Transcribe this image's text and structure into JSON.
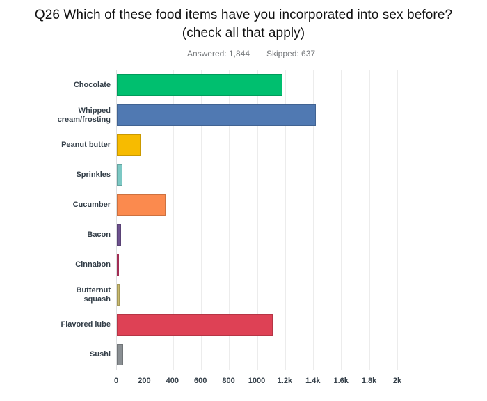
{
  "header": {
    "title": "Q26 Which of these food items have you incorporated into sex before?\n(check all that apply)",
    "answered": "Answered: 1,844",
    "skipped": "Skipped: 637"
  },
  "chart_data": {
    "type": "bar",
    "orientation": "horizontal",
    "title": "Q26 Which of these food items have you incorporated into sex before? (check all that apply)",
    "answered_count": "1,844",
    "skipped_count": "637",
    "categories": [
      "Chocolate",
      "Whipped\ncream/frosting",
      "Peanut butter",
      "Sprinkles",
      "Cucumber",
      "Bacon",
      "Cinnabon",
      "Butternut\nsquash",
      "Flavored lube",
      "Sushi"
    ],
    "values": [
      1180,
      1420,
      170,
      40,
      345,
      30,
      10,
      20,
      1110,
      45
    ],
    "colors": [
      "#00BF6F",
      "#5079B2",
      "#F7BB00",
      "#7CC8C4",
      "#FB8A4E",
      "#6D518F",
      "#C53767",
      "#C9BA6D",
      "#DE4155",
      "#8A8F93"
    ],
    "xlabel": "",
    "ylabel": "",
    "xlim": [
      0,
      2000
    ],
    "x_ticks": [
      "0",
      "200",
      "400",
      "600",
      "800",
      "1000",
      "1.2k",
      "1.4k",
      "1.6k",
      "1.8k",
      "2k"
    ],
    "grid": true,
    "legend": false
  }
}
